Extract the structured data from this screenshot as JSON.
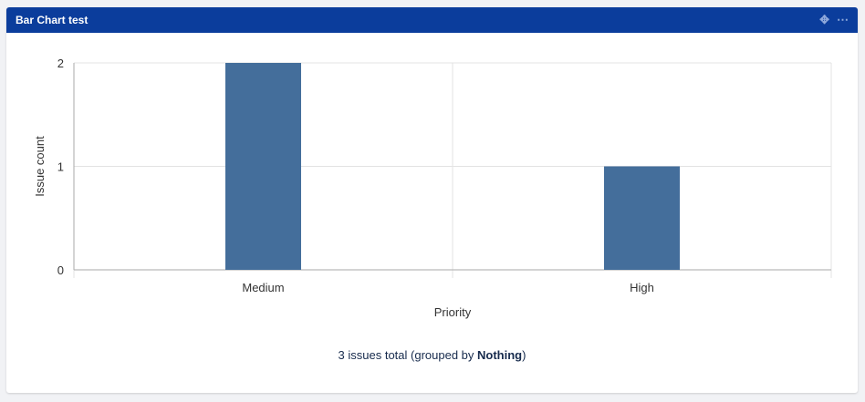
{
  "panel": {
    "title": "Bar Chart test",
    "move_icon": "move-arrows-icon",
    "menu_icon": "more-horizontal-icon"
  },
  "footer": {
    "prefix": "3 issues total (grouped by ",
    "group": "Nothing",
    "suffix": ")"
  },
  "chart_data": {
    "type": "bar",
    "categories": [
      "Medium",
      "High"
    ],
    "values": [
      2,
      1
    ],
    "xlabel": "Priority",
    "ylabel": "Issue count",
    "ylim": [
      0,
      2
    ],
    "yticks": [
      0,
      1,
      2
    ],
    "grid": true,
    "bar_color": "#446e9b"
  }
}
